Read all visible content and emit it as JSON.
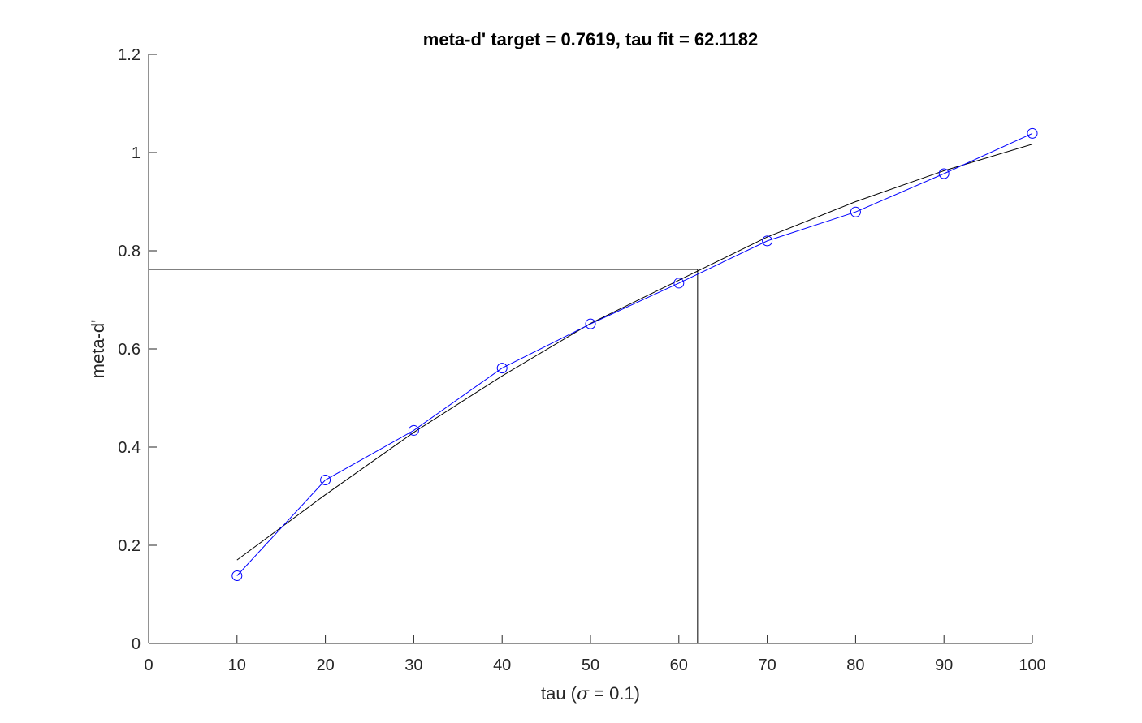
{
  "chart_data": {
    "type": "line",
    "title": "meta-d' target = 0.7619, tau fit = 62.1182",
    "xlabel": {
      "prefix": "tau (",
      "symbol": "σ",
      "suffix": " = 0.1)"
    },
    "ylabel": "meta-d'",
    "xlim": [
      0,
      100
    ],
    "ylim": [
      0,
      1.2
    ],
    "xticks": [
      0,
      10,
      20,
      30,
      40,
      50,
      60,
      70,
      80,
      90,
      100
    ],
    "xtick_labels": [
      "0",
      "10",
      "20",
      "30",
      "40",
      "50",
      "60",
      "70",
      "80",
      "90",
      "100"
    ],
    "yticks": [
      0,
      0.2,
      0.4,
      0.6,
      0.8,
      1.0,
      1.2
    ],
    "ytick_labels": [
      "0",
      "0.2",
      "0.4",
      "0.6",
      "0.8",
      "1",
      "1.2"
    ],
    "grid": false,
    "series": [
      {
        "style": "line-with-circle-markers",
        "color": "#0000ff",
        "x": [
          10,
          20,
          30,
          40,
          50,
          60,
          70,
          80,
          90,
          100
        ],
        "y": [
          0.138,
          0.333,
          0.434,
          0.561,
          0.651,
          0.734,
          0.82,
          0.879,
          0.957,
          1.039
        ]
      },
      {
        "style": "line",
        "color": "#000000",
        "x": [
          10,
          20,
          30,
          40,
          50,
          60,
          70,
          80,
          90,
          100
        ],
        "y": [
          0.17,
          0.303,
          0.43,
          0.545,
          0.652,
          0.74,
          0.828,
          0.9,
          0.963,
          1.017
        ]
      }
    ],
    "reference_lines": {
      "color": "#000000",
      "target_y": 0.7619,
      "fit_x": 62.1182
    }
  }
}
